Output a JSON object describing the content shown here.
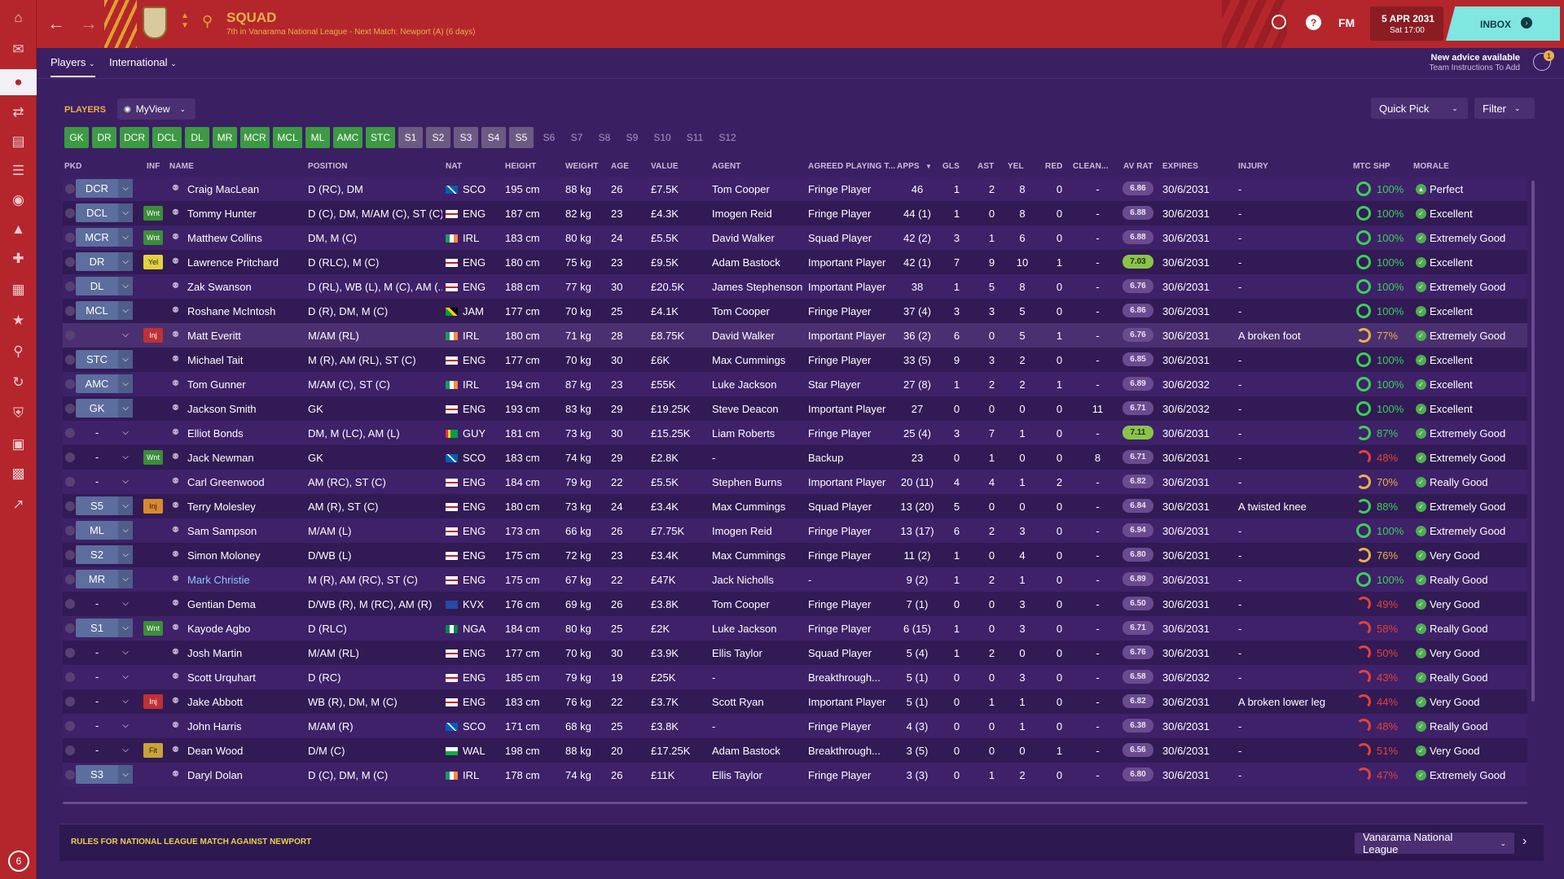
{
  "topbar": {
    "title": "SQUAD",
    "subtitle": "7th in Vanarama National League - Next Match: Newport (A) (6 days)",
    "fm_label": "FM",
    "date": "5 APR 2031",
    "time": "Sat 17:00",
    "inbox_label": "INBOX",
    "accent": "#b5262c",
    "inbox_color": "#7fe6e0"
  },
  "leftbar": {
    "icons": [
      "home-icon",
      "inbox-icon",
      "squad-icon",
      "transfer-icon",
      "report-icon",
      "clipboard-icon",
      "staff-icon",
      "tactics-icon",
      "medical-icon",
      "calendar-icon",
      "trophy-icon",
      "search-icon",
      "refresh-icon",
      "shield-icon",
      "briefcase-icon",
      "finances-icon",
      "chart-icon"
    ],
    "badge": "6"
  },
  "subnav": {
    "tab_players": "Players",
    "tab_international": "International",
    "advice_title": "New advice available",
    "advice_sub": "Team Instructions To Add",
    "advice_badge": "1"
  },
  "toolbar": {
    "players_label": "PLAYERS",
    "view_label": "MyView",
    "quick_pick": "Quick Pick",
    "filter": "Filter"
  },
  "position_filters": [
    "GK",
    "DR",
    "DCR",
    "DCL",
    "DL",
    "MR",
    "MCR",
    "MCL",
    "ML",
    "AMC",
    "STC",
    "S1",
    "S2",
    "S3",
    "S4",
    "S5",
    "S6",
    "S7",
    "S8",
    "S9",
    "S10",
    "S11",
    "S12"
  ],
  "columns": [
    "PKD",
    "INF",
    "NAME",
    "POSITION",
    "NAT",
    "HEIGHT",
    "WEIGHT",
    "AGE",
    "VALUE",
    "AGENT",
    "AGREED PLAYING T...",
    "APPS",
    "GLS",
    "AST",
    "YEL",
    "RED",
    "CLEAN...",
    "AV RAT",
    "EXPIRES",
    "INJURY",
    "MTC SHP",
    "MORALE"
  ],
  "players": [
    {
      "pos": "DCR",
      "inf": "",
      "name": "Craig MacLean",
      "position": "D (RC), DM",
      "nat": "SCO",
      "height": "195 cm",
      "weight": "88 kg",
      "age": "26",
      "value": "£7.5K",
      "agent": "Tom Cooper",
      "role": "Fringe Player",
      "apps": "46",
      "gls": "1",
      "ast": "2",
      "yel": "8",
      "red": "0",
      "clean": "-",
      "avrat": "6.86",
      "expires": "30/6/2031",
      "injury": "-",
      "shp": "100%",
      "morale": "Perfect"
    },
    {
      "pos": "DCL",
      "inf": "Wnt",
      "name": "Tommy Hunter",
      "position": "D (C), DM, M/AM (C), ST (C)",
      "nat": "ENG",
      "height": "187 cm",
      "weight": "82 kg",
      "age": "23",
      "value": "£4.3K",
      "agent": "Imogen Reid",
      "role": "Fringe Player",
      "apps": "44 (1)",
      "gls": "1",
      "ast": "0",
      "yel": "8",
      "red": "0",
      "clean": "-",
      "avrat": "6.88",
      "expires": "30/6/2031",
      "injury": "-",
      "shp": "100%",
      "morale": "Excellent"
    },
    {
      "pos": "MCR",
      "inf": "Wnt",
      "name": "Matthew Collins",
      "position": "DM, M (C)",
      "nat": "IRL",
      "height": "183 cm",
      "weight": "80 kg",
      "age": "24",
      "value": "£5.5K",
      "agent": "David Walker",
      "role": "Squad Player",
      "apps": "42 (2)",
      "gls": "3",
      "ast": "1",
      "yel": "6",
      "red": "0",
      "clean": "-",
      "avrat": "6.88",
      "expires": "30/6/2031",
      "injury": "-",
      "shp": "100%",
      "morale": "Extremely Good"
    },
    {
      "pos": "DR",
      "inf": "Yel",
      "name": "Lawrence Pritchard",
      "position": "D (RLC), M (C)",
      "nat": "ENG",
      "height": "180 cm",
      "weight": "75 kg",
      "age": "23",
      "value": "£9.5K",
      "agent": "Adam Bastock",
      "role": "Important Player",
      "apps": "42 (1)",
      "gls": "7",
      "ast": "9",
      "yel": "10",
      "red": "1",
      "clean": "-",
      "avrat": "7.03",
      "expires": "30/6/2031",
      "injury": "-",
      "shp": "100%",
      "morale": "Excellent"
    },
    {
      "pos": "DL",
      "inf": "",
      "name": "Zak Swanson",
      "position": "D (RL), WB (L), M (C), AM (...",
      "nat": "ENG",
      "height": "188 cm",
      "weight": "77 kg",
      "age": "30",
      "value": "£20.5K",
      "agent": "James Stephenson",
      "role": "Important Player",
      "apps": "38",
      "gls": "1",
      "ast": "5",
      "yel": "8",
      "red": "0",
      "clean": "-",
      "avrat": "6.76",
      "expires": "30/6/2031",
      "injury": "-",
      "shp": "100%",
      "morale": "Extremely Good"
    },
    {
      "pos": "MCL",
      "inf": "",
      "name": "Roshane McIntosh",
      "position": "D (R), DM, M (C)",
      "nat": "JAM",
      "height": "177 cm",
      "weight": "70 kg",
      "age": "25",
      "value": "£4.1K",
      "agent": "Tom Cooper",
      "role": "Fringe Player",
      "apps": "37 (4)",
      "gls": "3",
      "ast": "3",
      "yel": "5",
      "red": "0",
      "clean": "-",
      "avrat": "6.86",
      "expires": "30/6/2031",
      "injury": "-",
      "shp": "100%",
      "morale": "Excellent"
    },
    {
      "pos": "",
      "inf": "Inj",
      "name": "Matt Everitt",
      "position": "M/AM (RL)",
      "nat": "IRL",
      "height": "180 cm",
      "weight": "71 kg",
      "age": "28",
      "value": "£8.75K",
      "agent": "David Walker",
      "role": "Important Player",
      "apps": "36 (2)",
      "gls": "6",
      "ast": "0",
      "yel": "5",
      "red": "1",
      "clean": "-",
      "avrat": "6.76",
      "expires": "30/6/2031",
      "injury": "A broken foot",
      "shp": "77%",
      "morale": "Extremely Good"
    },
    {
      "pos": "STC",
      "inf": "",
      "name": "Michael Tait",
      "position": "M (R), AM (RL), ST (C)",
      "nat": "ENG",
      "height": "177 cm",
      "weight": "70 kg",
      "age": "30",
      "value": "£6K",
      "agent": "Max Cummings",
      "role": "Fringe Player",
      "apps": "33 (5)",
      "gls": "9",
      "ast": "3",
      "yel": "2",
      "red": "0",
      "clean": "-",
      "avrat": "6.85",
      "expires": "30/6/2031",
      "injury": "-",
      "shp": "100%",
      "morale": "Excellent"
    },
    {
      "pos": "AMC",
      "inf": "",
      "name": "Tom Gunner",
      "position": "M/AM (C), ST (C)",
      "nat": "IRL",
      "height": "194 cm",
      "weight": "87 kg",
      "age": "23",
      "value": "£55K",
      "agent": "Luke Jackson",
      "role": "Star Player",
      "apps": "27 (8)",
      "gls": "1",
      "ast": "2",
      "yel": "2",
      "red": "1",
      "clean": "-",
      "avrat": "6.89",
      "expires": "30/6/2032",
      "injury": "-",
      "shp": "100%",
      "morale": "Excellent"
    },
    {
      "pos": "GK",
      "inf": "",
      "name": "Jackson Smith",
      "position": "GK",
      "nat": "ENG",
      "height": "193 cm",
      "weight": "83 kg",
      "age": "29",
      "value": "£19.25K",
      "agent": "Steve Deacon",
      "role": "Important Player",
      "apps": "27",
      "gls": "0",
      "ast": "0",
      "yel": "0",
      "red": "0",
      "clean": "11",
      "avrat": "6.71",
      "expires": "30/6/2032",
      "injury": "-",
      "shp": "100%",
      "morale": "Excellent"
    },
    {
      "pos": "-",
      "inf": "",
      "name": "Elliot Bonds",
      "position": "DM, M (LC), AM (L)",
      "nat": "GUY",
      "height": "181 cm",
      "weight": "73 kg",
      "age": "30",
      "value": "£15.25K",
      "agent": "Liam Roberts",
      "role": "Fringe Player",
      "apps": "25 (4)",
      "gls": "3",
      "ast": "7",
      "yel": "1",
      "red": "0",
      "clean": "-",
      "avrat": "7.11",
      "expires": "30/6/2031",
      "injury": "-",
      "shp": "87%",
      "morale": "Extremely Good"
    },
    {
      "pos": "-",
      "inf": "Wnt",
      "name": "Jack Newman",
      "position": "GK",
      "nat": "SCO",
      "height": "183 cm",
      "weight": "74 kg",
      "age": "29",
      "value": "£2.8K",
      "agent": "-",
      "role": "Backup",
      "apps": "23",
      "gls": "0",
      "ast": "1",
      "yel": "0",
      "red": "0",
      "clean": "8",
      "avrat": "6.71",
      "expires": "30/6/2031",
      "injury": "-",
      "shp": "48%",
      "morale": "Extremely Good"
    },
    {
      "pos": "-",
      "inf": "",
      "name": "Carl Greenwood",
      "position": "AM (RC), ST (C)",
      "nat": "ENG",
      "height": "184 cm",
      "weight": "79 kg",
      "age": "22",
      "value": "£5.5K",
      "agent": "Stephen Burns",
      "role": "Important Player",
      "apps": "20 (11)",
      "gls": "4",
      "ast": "4",
      "yel": "1",
      "red": "2",
      "clean": "-",
      "avrat": "6.82",
      "expires": "30/6/2031",
      "injury": "-",
      "shp": "70%",
      "morale": "Really Good"
    },
    {
      "pos": "S5",
      "inf": "Inj",
      "name": "Terry Molesley",
      "position": "AM (R), ST (C)",
      "nat": "ENG",
      "height": "180 cm",
      "weight": "73 kg",
      "age": "24",
      "value": "£3.4K",
      "agent": "Max Cummings",
      "role": "Squad Player",
      "apps": "13 (20)",
      "gls": "5",
      "ast": "0",
      "yel": "0",
      "red": "0",
      "clean": "-",
      "avrat": "6.84",
      "expires": "30/6/2031",
      "injury": "A twisted knee",
      "shp": "88%",
      "morale": "Extremely Good"
    },
    {
      "pos": "ML",
      "inf": "",
      "name": "Sam Sampson",
      "position": "M/AM (L)",
      "nat": "ENG",
      "height": "173 cm",
      "weight": "66 kg",
      "age": "26",
      "value": "£7.75K",
      "agent": "Imogen Reid",
      "role": "Fringe Player",
      "apps": "13 (17)",
      "gls": "6",
      "ast": "2",
      "yel": "3",
      "red": "0",
      "clean": "-",
      "avrat": "6.94",
      "expires": "30/6/2031",
      "injury": "-",
      "shp": "100%",
      "morale": "Extremely Good"
    },
    {
      "pos": "S2",
      "inf": "",
      "name": "Simon Moloney",
      "position": "D/WB (L)",
      "nat": "ENG",
      "height": "175 cm",
      "weight": "72 kg",
      "age": "23",
      "value": "£3.4K",
      "agent": "Max Cummings",
      "role": "Fringe Player",
      "apps": "11 (2)",
      "gls": "1",
      "ast": "0",
      "yel": "4",
      "red": "0",
      "clean": "-",
      "avrat": "6.80",
      "expires": "30/6/2031",
      "injury": "-",
      "shp": "76%",
      "morale": "Very Good"
    },
    {
      "pos": "MR",
      "inf": "",
      "name": "Mark Christie",
      "position": "M (R), AM (RC), ST (C)",
      "nat": "ENG",
      "height": "175 cm",
      "weight": "67 kg",
      "age": "22",
      "value": "£47K",
      "agent": "Jack Nicholls",
      "role": "-",
      "apps": "9 (2)",
      "gls": "1",
      "ast": "2",
      "yel": "1",
      "red": "0",
      "clean": "-",
      "avrat": "6.89",
      "expires": "30/6/2031",
      "injury": "-",
      "shp": "100%",
      "morale": "Really Good"
    },
    {
      "pos": "-",
      "inf": "",
      "name": "Gentian Dema",
      "position": "D/WB (R), M (RC), AM (R)",
      "nat": "KVX",
      "height": "176 cm",
      "weight": "69 kg",
      "age": "26",
      "value": "£3.8K",
      "agent": "Tom Cooper",
      "role": "Fringe Player",
      "apps": "7 (1)",
      "gls": "0",
      "ast": "0",
      "yel": "3",
      "red": "0",
      "clean": "-",
      "avrat": "6.50",
      "expires": "30/6/2031",
      "injury": "-",
      "shp": "49%",
      "morale": "Very Good"
    },
    {
      "pos": "S1",
      "inf": "Wnt",
      "name": "Kayode Agbo",
      "position": "D (RLC)",
      "nat": "NGA",
      "height": "184 cm",
      "weight": "80 kg",
      "age": "25",
      "value": "£2K",
      "agent": "Luke Jackson",
      "role": "Fringe Player",
      "apps": "6 (15)",
      "gls": "1",
      "ast": "0",
      "yel": "3",
      "red": "0",
      "clean": "-",
      "avrat": "6.71",
      "expires": "30/6/2031",
      "injury": "-",
      "shp": "58%",
      "morale": "Really Good"
    },
    {
      "pos": "-",
      "inf": "",
      "name": "Josh Martin",
      "position": "M/AM (RL)",
      "nat": "ENG",
      "height": "177 cm",
      "weight": "70 kg",
      "age": "30",
      "value": "£3.9K",
      "agent": "Ellis Taylor",
      "role": "Squad Player",
      "apps": "5 (4)",
      "gls": "1",
      "ast": "2",
      "yel": "0",
      "red": "0",
      "clean": "-",
      "avrat": "6.76",
      "expires": "30/6/2031",
      "injury": "-",
      "shp": "50%",
      "morale": "Very Good"
    },
    {
      "pos": "-",
      "inf": "",
      "name": "Scott Urquhart",
      "position": "D (RC)",
      "nat": "ENG",
      "height": "185 cm",
      "weight": "79 kg",
      "age": "19",
      "value": "£25K",
      "agent": "-",
      "role": "Breakthrough...",
      "apps": "5 (1)",
      "gls": "0",
      "ast": "0",
      "yel": "3",
      "red": "0",
      "clean": "-",
      "avrat": "6.58",
      "expires": "30/6/2032",
      "injury": "-",
      "shp": "43%",
      "morale": "Really Good"
    },
    {
      "pos": "-",
      "inf": "Inj",
      "name": "Jake Abbott",
      "position": "WB (R), DM, M (C)",
      "nat": "ENG",
      "height": "183 cm",
      "weight": "76 kg",
      "age": "22",
      "value": "£3.7K",
      "agent": "Scott Ryan",
      "role": "Important Player",
      "apps": "5 (1)",
      "gls": "0",
      "ast": "1",
      "yel": "1",
      "red": "0",
      "clean": "-",
      "avrat": "6.82",
      "expires": "30/6/2031",
      "injury": "A broken lower leg",
      "shp": "44%",
      "morale": "Very Good"
    },
    {
      "pos": "-",
      "inf": "",
      "name": "John Harris",
      "position": "M/AM (R)",
      "nat": "SCO",
      "height": "171 cm",
      "weight": "68 kg",
      "age": "25",
      "value": "£3.8K",
      "agent": "-",
      "role": "Fringe Player",
      "apps": "4 (3)",
      "gls": "0",
      "ast": "0",
      "yel": "1",
      "red": "0",
      "clean": "-",
      "avrat": "6.38",
      "expires": "30/6/2031",
      "injury": "-",
      "shp": "48%",
      "morale": "Really Good"
    },
    {
      "pos": "-",
      "inf": "Fit",
      "name": "Dean Wood",
      "position": "D/M (C)",
      "nat": "WAL",
      "height": "198 cm",
      "weight": "88 kg",
      "age": "20",
      "value": "£17.25K",
      "agent": "Adam Bastock",
      "role": "Breakthrough...",
      "apps": "3 (5)",
      "gls": "0",
      "ast": "0",
      "yel": "0",
      "red": "1",
      "clean": "-",
      "avrat": "6.56",
      "expires": "30/6/2031",
      "injury": "-",
      "shp": "51%",
      "morale": "Very Good"
    },
    {
      "pos": "S3",
      "inf": "",
      "name": "Daryl Dolan",
      "position": "D (C), DM, M (C)",
      "nat": "IRL",
      "height": "178 cm",
      "weight": "74 kg",
      "age": "26",
      "value": "£11K",
      "agent": "Ellis Taylor",
      "role": "Fringe Player",
      "apps": "3 (3)",
      "gls": "0",
      "ast": "1",
      "yel": "2",
      "red": "0",
      "clean": "-",
      "avrat": "6.80",
      "expires": "30/6/2031",
      "injury": "-",
      "shp": "47%",
      "morale": "Extremely Good"
    }
  ],
  "bottombar": {
    "rules_label": "RULES FOR NATIONAL LEAGUE MATCH AGAINST NEWPORT",
    "competition": "Vanarama National League"
  }
}
